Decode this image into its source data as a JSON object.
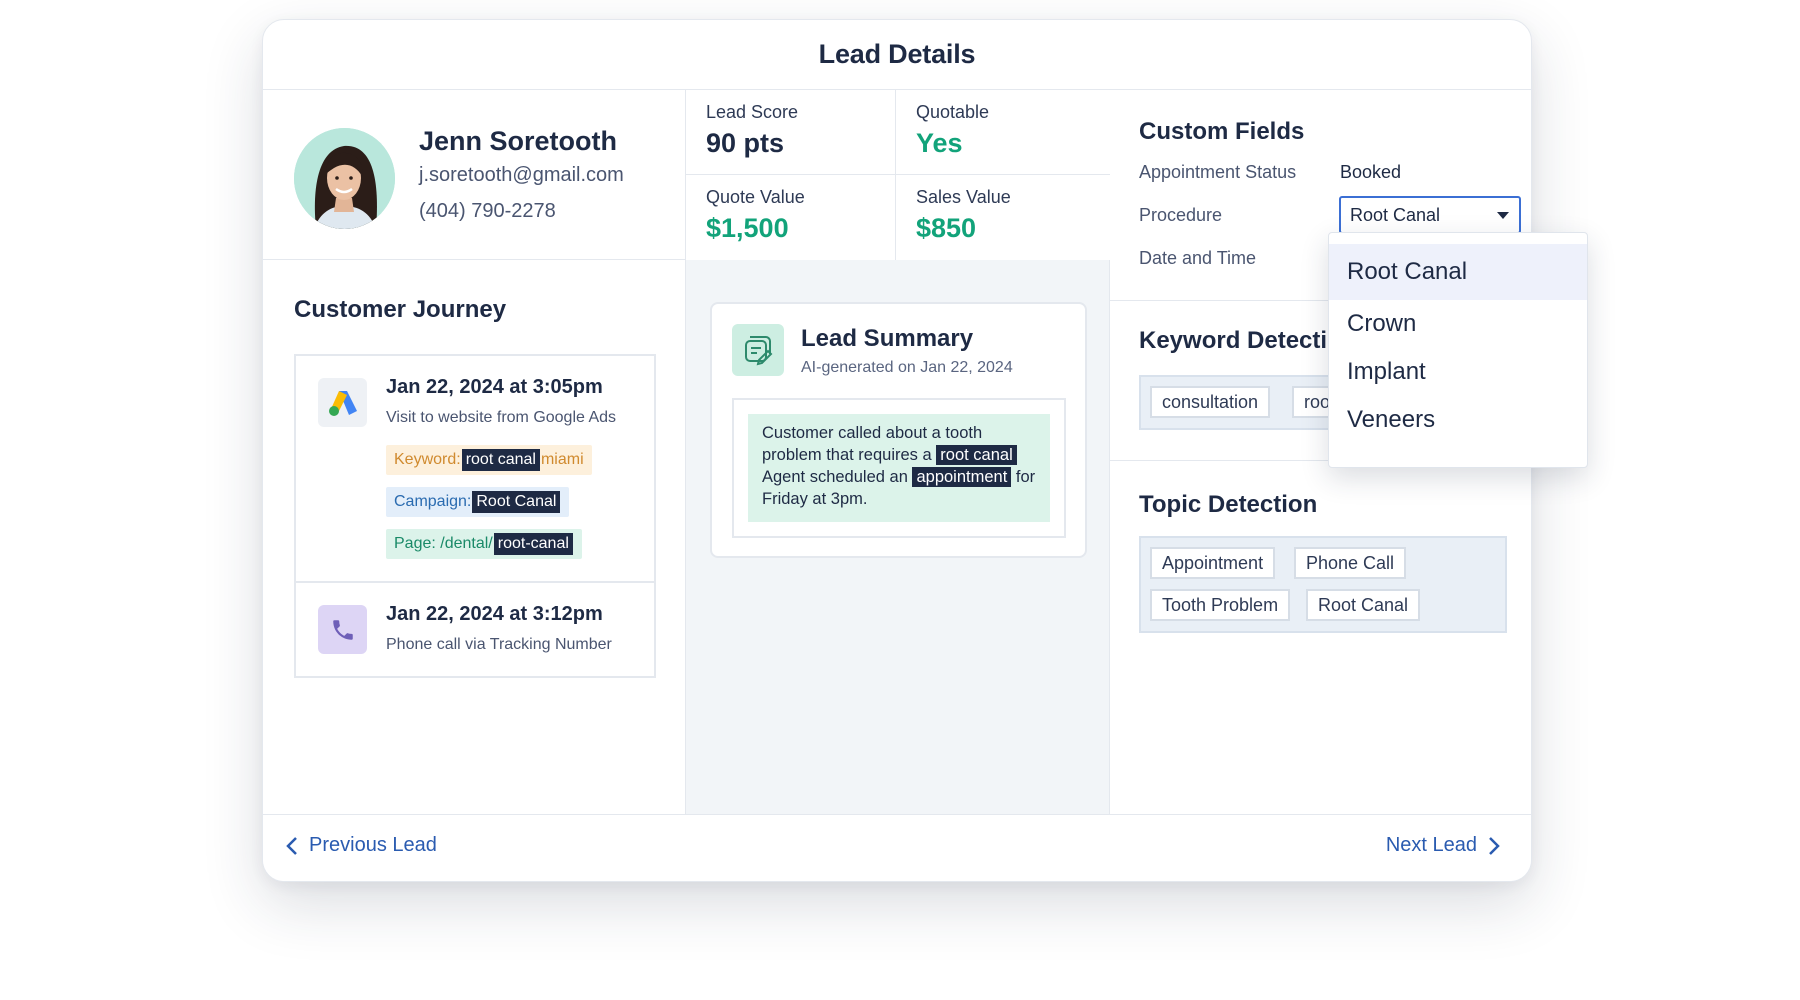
{
  "header": {
    "title": "Lead Details"
  },
  "profile": {
    "name": "Jenn Soretooth",
    "email": "j.soretooth@gmail.com",
    "phone": "(404) 790-2278"
  },
  "stats": [
    {
      "label": "Lead Score",
      "value": "90 pts",
      "color": "#1e2a44"
    },
    {
      "label": "Quotable",
      "value": "Yes",
      "color": "#12a37a"
    },
    {
      "label": "Quote Value",
      "value": "$1,500",
      "color": "#12a37a"
    },
    {
      "label": "Sales Value",
      "value": "$850",
      "color": "#12a37a"
    }
  ],
  "journey": {
    "title": "Customer Journey",
    "items": [
      {
        "date": "Jan 22, 2024 at 3:05pm",
        "subtitle": "Visit to website from Google Ads",
        "icon": "google-ads-icon",
        "keyword": {
          "label": "Keyword:",
          "highlight": "root canal",
          "rest": "miami"
        },
        "campaign": {
          "label": "Campaign:",
          "highlight": "Root Canal"
        },
        "page": {
          "label": "Page: /dental/",
          "highlight": "root-canal"
        }
      },
      {
        "date": "Jan 22, 2024 at 3:12pm",
        "subtitle": "Phone call via Tracking Number",
        "icon": "phone-icon"
      }
    ]
  },
  "summary": {
    "title": "Lead Summary",
    "subtitle": "AI-generated on Jan 22, 2024",
    "text_1": "Customer called about a tooth problem that requires a",
    "highlight_1": "root canal",
    "text_2": "Agent scheduled an",
    "highlight_2": "appointment",
    "text_3": "for Friday at 3pm."
  },
  "custom_fields": {
    "title": "Custom Fields",
    "appointment_status_label": "Appointment Status",
    "appointment_status_value": "Booked",
    "procedure_label": "Procedure",
    "procedure_value": "Root Canal",
    "date_time_label": "Date and Time"
  },
  "keyword_detection": {
    "title": "Keyword Detecti",
    "chips": [
      "consultation",
      "roo"
    ]
  },
  "topic_detection": {
    "title": "Topic Detection",
    "chips": [
      "Appointment",
      "Phone Call",
      "Tooth Problem",
      "Root Canal"
    ]
  },
  "dropdown": {
    "options": [
      "Root Canal",
      "Crown",
      "Implant",
      "Veneers"
    ],
    "selected": "Root Canal"
  },
  "footer": {
    "prev_label": "Previous Lead",
    "next_label": "Next Lead"
  },
  "colors": {
    "accent_green": "#12a37a",
    "accent_blue": "#2a5bb0",
    "text_dark": "#1e2a44"
  }
}
